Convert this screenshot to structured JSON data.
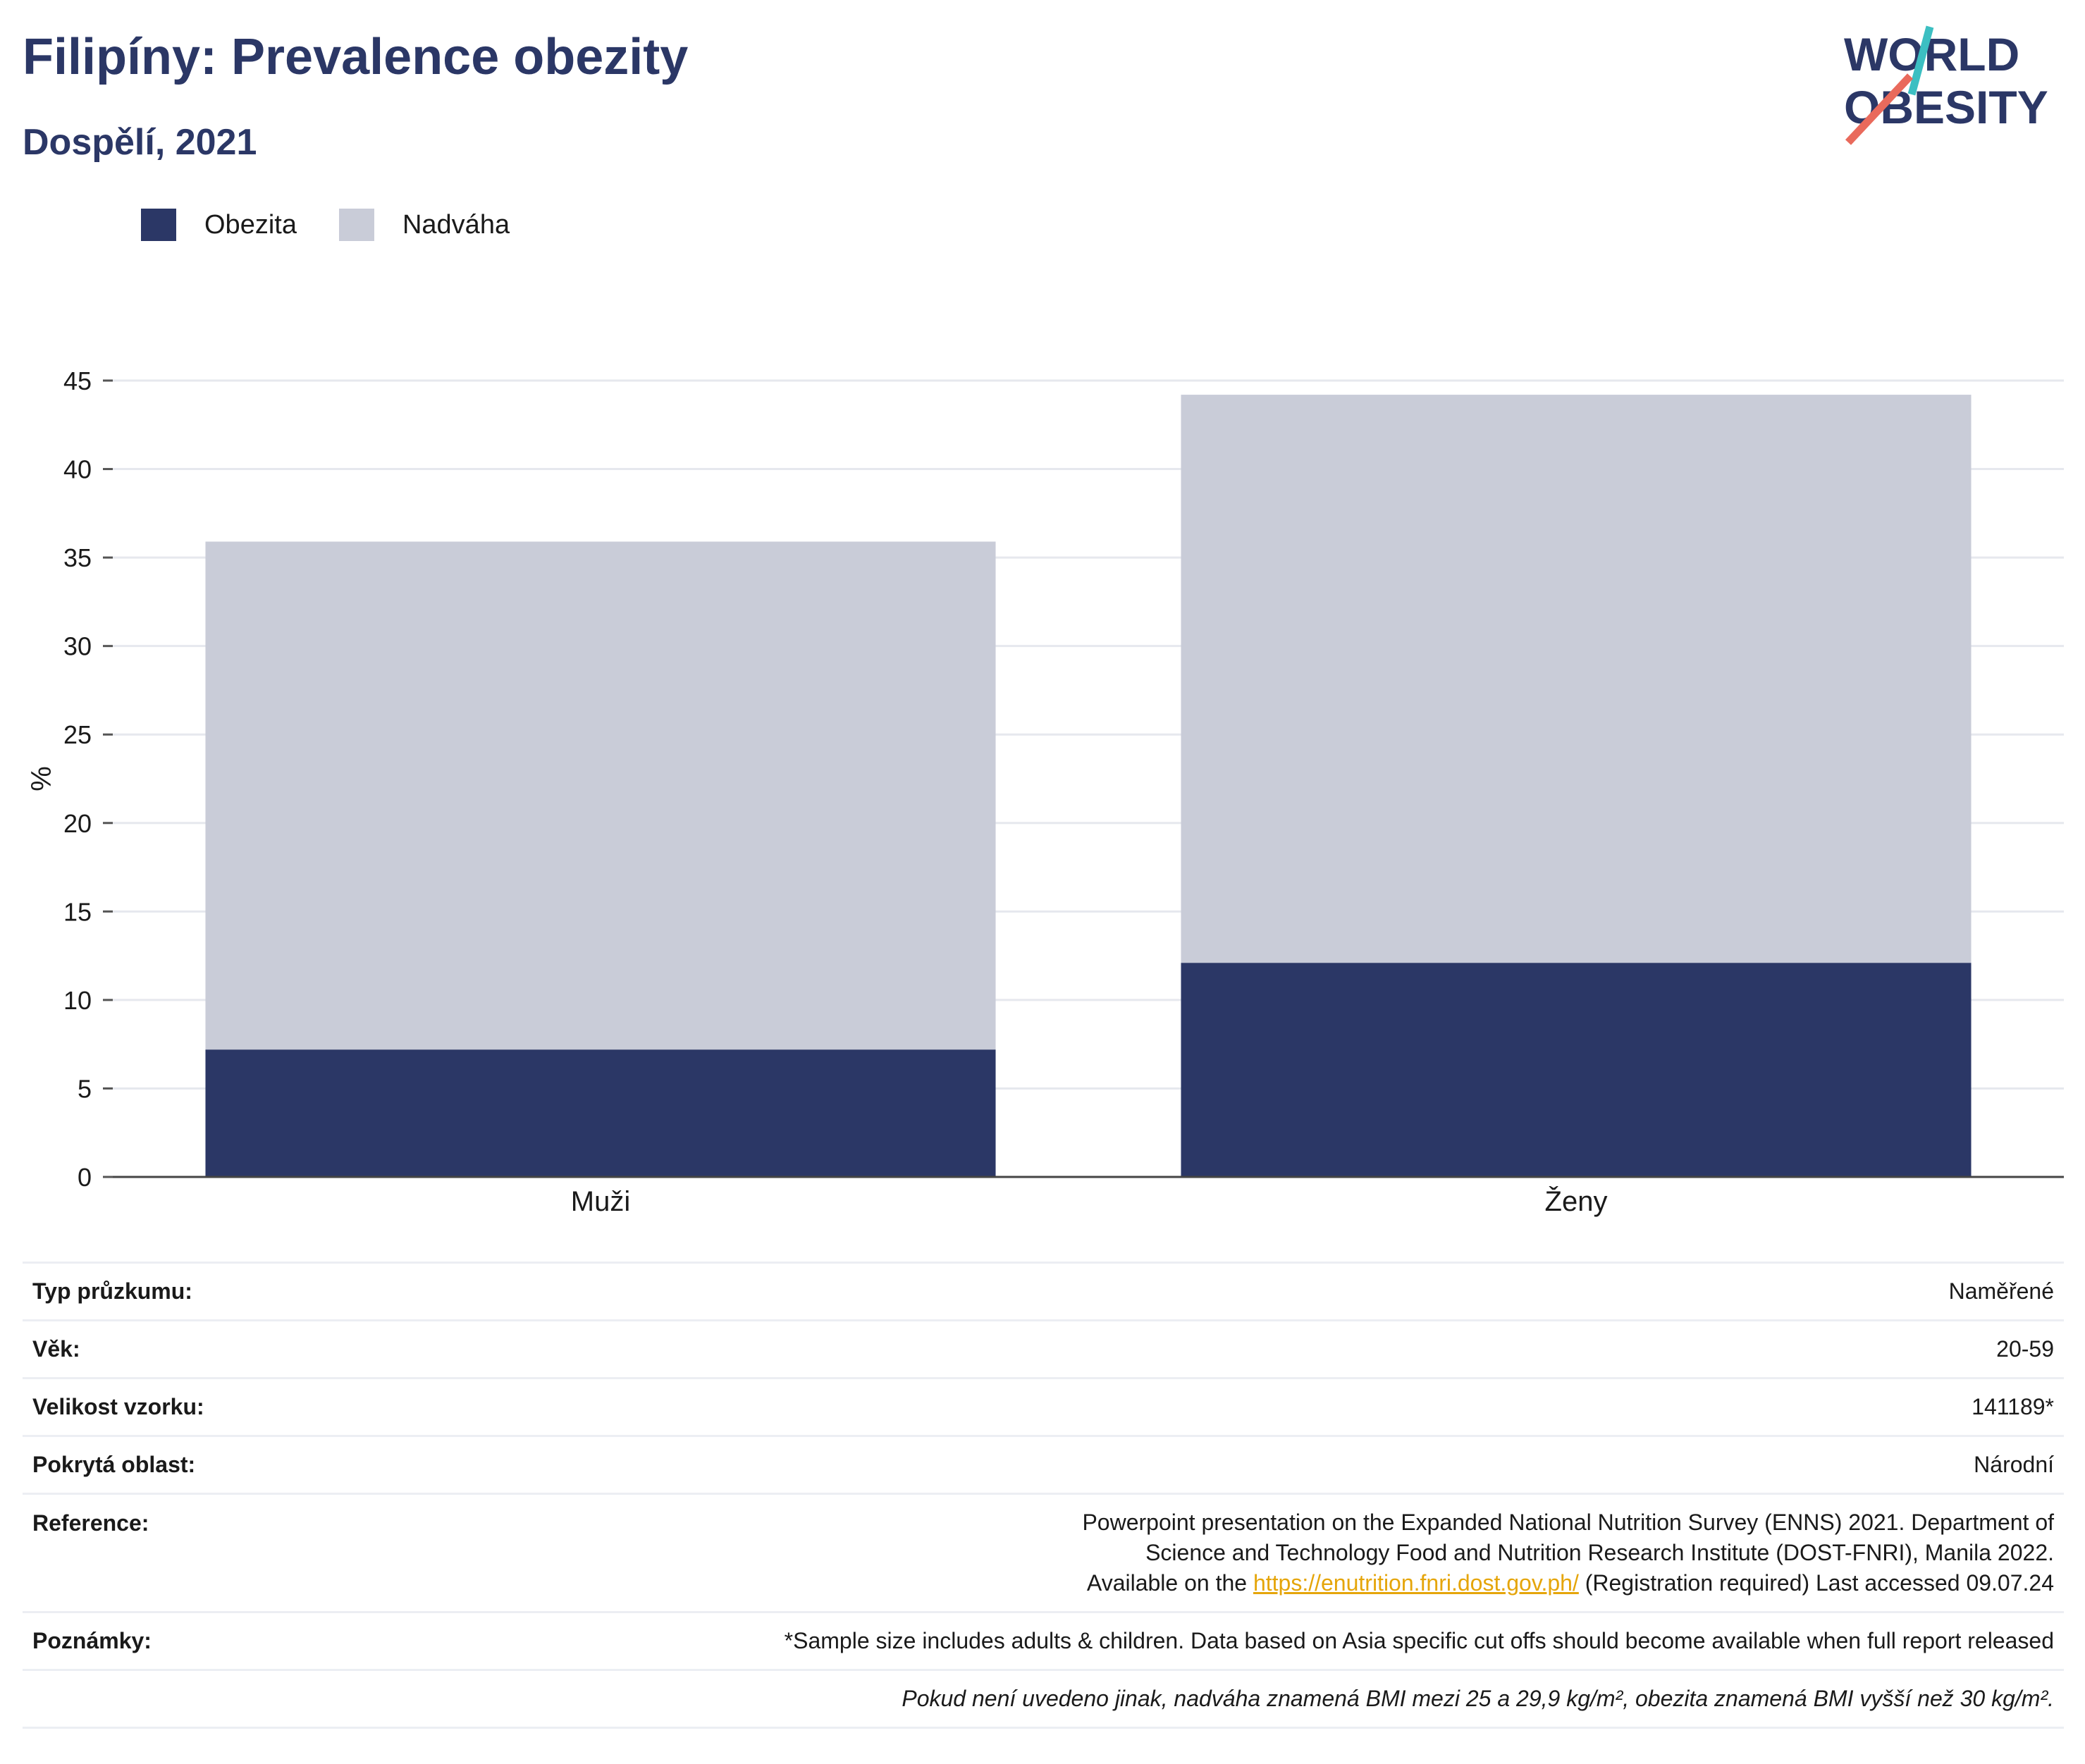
{
  "header": {
    "title": "Filipíny: Prevalence obezity",
    "subtitle": "Dospělí, 2021",
    "logo_line1": "WORLD",
    "logo_line2": "OBESITY"
  },
  "colors": {
    "obesity": "#2b3766",
    "overweight": "#c9ccd8",
    "accent_teal": "#3cbfc2",
    "accent_coral": "#e96a5c",
    "link": "#e5a50a"
  },
  "chart_data": {
    "type": "bar",
    "stacked": true,
    "categories": [
      "Muži",
      "Ženy"
    ],
    "series": [
      {
        "name": "Obezita",
        "values": [
          7.2,
          12.1
        ]
      },
      {
        "name": "Nadváha",
        "values": [
          28.7,
          32.1
        ]
      }
    ],
    "ylabel": "%",
    "ylim": [
      0,
      45
    ],
    "yticks": [
      0,
      5,
      10,
      15,
      20,
      25,
      30,
      35,
      40,
      45
    ],
    "grid": true,
    "legend": "top-left"
  },
  "info": {
    "rows": [
      {
        "label": "Typ průzkumu:",
        "value": "Naměřené"
      },
      {
        "label": "Věk:",
        "value": "20-59"
      },
      {
        "label": "Velikost vzorku:",
        "value": "141189*"
      },
      {
        "label": "Pokrytá oblast:",
        "value": "Národní"
      }
    ],
    "reference_label": "Reference:",
    "reference_text1": "Powerpoint presentation on the Expanded National Nutrition Survey (ENNS) 2021. Department of Science and Technology Food and Nutrition Research Institute (DOST-FNRI), Manila 2022. Available on the",
    "reference_link": "https://enutrition.fnri.dost.gov.ph/",
    "reference_text2": "(Registration required) Last accessed 09.07.24",
    "notes_label": "Poznámky:",
    "notes_value": "*Sample size includes adults & children. Data based on Asia specific cut offs should become available when full report released",
    "footnote": "Pokud není uvedeno jinak, nadváha znamená BMI mezi 25 a 29,9 kg/m², obezita znamená BMI vyšší než 30 kg/m²."
  }
}
